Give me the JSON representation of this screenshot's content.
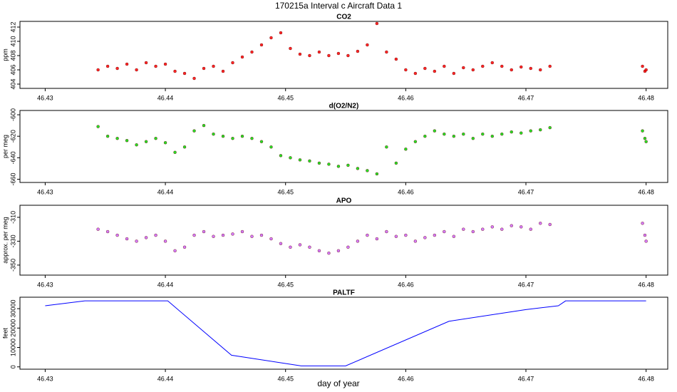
{
  "title": "170215a   Interval c Aircraft Data 1",
  "xlabel": "day of year",
  "chart_data": [
    {
      "type": "scatter",
      "title": "CO2",
      "ylabel": "ppm",
      "color": "#ff0000",
      "x": [
        46.4344,
        46.4352,
        46.436,
        46.4368,
        46.4376,
        46.4384,
        46.4392,
        46.44,
        46.4408,
        46.4416,
        46.4424,
        46.4432,
        46.444,
        46.4448,
        46.4456,
        46.4464,
        46.4472,
        46.448,
        46.4488,
        46.4496,
        46.4504,
        46.4512,
        46.452,
        46.4528,
        46.4536,
        46.4544,
        46.4552,
        46.456,
        46.4568,
        46.4576,
        46.4584,
        46.4592,
        46.46,
        46.4608,
        46.4616,
        46.4624,
        46.4632,
        46.464,
        46.4648,
        46.4656,
        46.4664,
        46.4672,
        46.468,
        46.4688,
        46.4696,
        46.4704,
        46.4712,
        46.472,
        46.4797,
        46.4799,
        46.48
      ],
      "values": [
        406.0,
        406.5,
        406.2,
        406.8,
        406.0,
        407.0,
        406.5,
        406.8,
        405.8,
        405.5,
        404.8,
        406.2,
        406.5,
        405.8,
        407.0,
        407.8,
        408.5,
        409.5,
        410.5,
        411.2,
        409.0,
        408.2,
        408.0,
        408.5,
        408.0,
        408.3,
        408.0,
        408.6,
        409.5,
        412.5,
        408.5,
        407.5,
        406.0,
        405.5,
        406.2,
        405.8,
        406.5,
        405.5,
        406.3,
        406.0,
        406.5,
        407.0,
        406.5,
        406.0,
        406.4,
        406.2,
        406.0,
        406.5,
        406.5,
        405.8,
        406.0
      ],
      "xlim": [
        46.4279,
        46.4818
      ],
      "ylim": [
        403.4,
        412.8
      ],
      "xticks": [
        46.43,
        46.44,
        46.45,
        46.46,
        46.47,
        46.48
      ],
      "yticks": [
        404,
        406,
        408,
        410,
        412
      ]
    },
    {
      "type": "scatter",
      "title": "d(O2/N2)",
      "ylabel": "per meg",
      "color": "#00dd00",
      "x": [
        46.4344,
        46.4352,
        46.436,
        46.4368,
        46.4376,
        46.4384,
        46.4392,
        46.44,
        46.4408,
        46.4416,
        46.4424,
        46.4432,
        46.444,
        46.4448,
        46.4456,
        46.4464,
        46.4472,
        46.448,
        46.4488,
        46.4496,
        46.4504,
        46.4512,
        46.452,
        46.4528,
        46.4536,
        46.4544,
        46.4552,
        46.456,
        46.4568,
        46.4576,
        46.4584,
        46.4592,
        46.46,
        46.4608,
        46.4616,
        46.4624,
        46.4632,
        46.464,
        46.4648,
        46.4656,
        46.4664,
        46.4672,
        46.468,
        46.4688,
        46.4696,
        46.4704,
        46.4712,
        46.472,
        46.4797,
        46.4799,
        46.48
      ],
      "values": [
        -611,
        -620,
        -622,
        -624,
        -628,
        -625,
        -622,
        -626,
        -635,
        -630,
        -615,
        -610,
        -618,
        -620,
        -622,
        -620,
        -622,
        -625,
        -630,
        -638,
        -640,
        -642,
        -643,
        -645,
        -646,
        -648,
        -647,
        -650,
        -652,
        -655,
        -630,
        -645,
        -632,
        -625,
        -620,
        -615,
        -618,
        -620,
        -618,
        -622,
        -618,
        -620,
        -618,
        -616,
        -617,
        -615,
        -614,
        -612,
        -615,
        -622,
        -625
      ],
      "xlim": [
        46.4279,
        46.4818
      ],
      "ylim": [
        -663,
        -596
      ],
      "xticks": [
        46.43,
        46.44,
        46.45,
        46.46,
        46.47,
        46.48
      ],
      "yticks": [
        -660,
        -640,
        -620,
        -600
      ]
    },
    {
      "type": "scatter",
      "title": "APO",
      "ylabel": "approx. per meg",
      "color": "#cc66ff",
      "x": [
        46.4344,
        46.4352,
        46.436,
        46.4368,
        46.4376,
        46.4384,
        46.4392,
        46.44,
        46.4408,
        46.4416,
        46.4424,
        46.4432,
        46.444,
        46.4448,
        46.4456,
        46.4464,
        46.4472,
        46.448,
        46.4488,
        46.4496,
        46.4504,
        46.4512,
        46.452,
        46.4528,
        46.4536,
        46.4544,
        46.4552,
        46.456,
        46.4568,
        46.4576,
        46.4584,
        46.4592,
        46.46,
        46.4608,
        46.4616,
        46.4624,
        46.4632,
        46.464,
        46.4648,
        46.4656,
        46.4664,
        46.4672,
        46.468,
        46.4688,
        46.4696,
        46.4704,
        46.4712,
        46.472,
        46.4797,
        46.4799,
        46.48
      ],
      "values": [
        -320,
        -322,
        -325,
        -328,
        -330,
        -327,
        -325,
        -330,
        -338,
        -335,
        -325,
        -322,
        -326,
        -325,
        -324,
        -322,
        -326,
        -325,
        -328,
        -332,
        -335,
        -333,
        -335,
        -338,
        -340,
        -338,
        -335,
        -330,
        -325,
        -328,
        -322,
        -326,
        -325,
        -330,
        -327,
        -325,
        -322,
        -326,
        -320,
        -322,
        -320,
        -318,
        -320,
        -317,
        -318,
        -320,
        -315,
        -316,
        -315,
        -325,
        -330
      ],
      "xlim": [
        46.4279,
        46.4818
      ],
      "ylim": [
        -358.4,
        -299.9
      ],
      "xticks": [
        46.43,
        46.44,
        46.45,
        46.46,
        46.47,
        46.48
      ],
      "yticks": [
        -350,
        -330,
        -310
      ]
    },
    {
      "type": "line",
      "title": "PALTF",
      "ylabel": "feet",
      "color": "#0000ff",
      "x": [
        46.43,
        46.4333,
        46.4402,
        46.4455,
        46.4513,
        46.455,
        46.4636,
        46.47,
        46.4727,
        46.4733,
        46.48
      ],
      "values": [
        31500,
        34000,
        34000,
        6000,
        500,
        500,
        23500,
        29500,
        31500,
        34000,
        34000
      ],
      "xlim": [
        46.4279,
        46.4818
      ],
      "ylim": [
        -1200,
        35900
      ],
      "xticks": [
        46.43,
        46.44,
        46.45,
        46.46,
        46.47,
        46.48
      ],
      "yticks": [
        0,
        10000,
        20000,
        30000
      ]
    }
  ]
}
